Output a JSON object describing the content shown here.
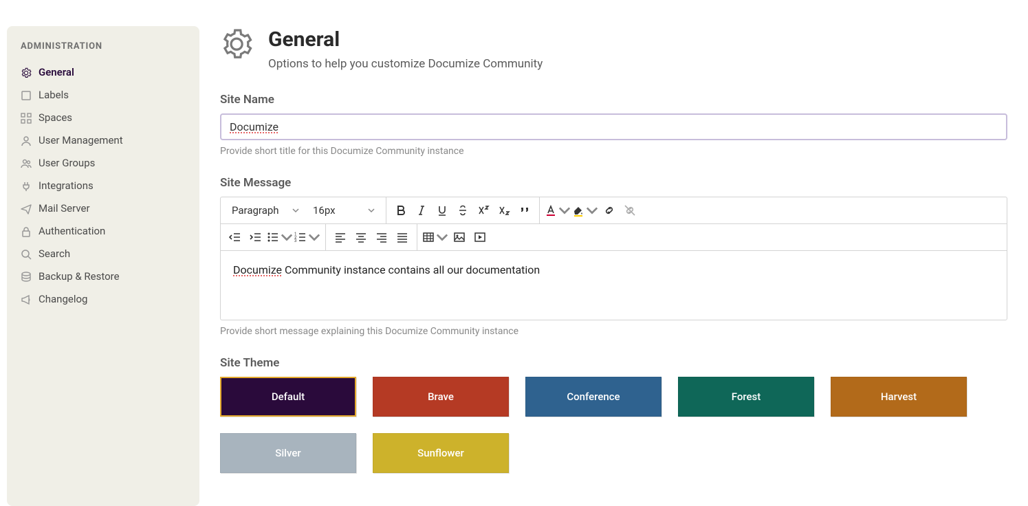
{
  "sidebar": {
    "title": "ADMINISTRATION",
    "items": [
      {
        "label": "General",
        "icon": "gear",
        "active": true
      },
      {
        "label": "Labels",
        "icon": "square",
        "active": false
      },
      {
        "label": "Spaces",
        "icon": "grid",
        "active": false
      },
      {
        "label": "User Management",
        "icon": "user",
        "active": false
      },
      {
        "label": "User Groups",
        "icon": "users",
        "active": false
      },
      {
        "label": "Integrations",
        "icon": "plug",
        "active": false
      },
      {
        "label": "Mail Server",
        "icon": "send",
        "active": false
      },
      {
        "label": "Authentication",
        "icon": "lock",
        "active": false
      },
      {
        "label": "Search",
        "icon": "search",
        "active": false
      },
      {
        "label": "Backup & Restore",
        "icon": "database",
        "active": false
      },
      {
        "label": "Changelog",
        "icon": "megaphone",
        "active": false
      }
    ]
  },
  "header": {
    "title": "General",
    "subtitle": "Options to help you customize Documize Community"
  },
  "site_name": {
    "label": "Site Name",
    "value": "Documize",
    "help": "Provide short title for this Documize Community instance"
  },
  "site_message": {
    "label": "Site Message",
    "help": "Provide short message explaining this Documize Community instance",
    "content_word": "Documize",
    "content_rest": " Community instance contains all our documentation",
    "toolbar": {
      "paragraph_select": "Paragraph",
      "fontsize_select": "16px"
    }
  },
  "site_theme": {
    "label": "Site Theme",
    "themes": [
      {
        "name": "Default",
        "color": "#2a0a3b",
        "selected": true
      },
      {
        "name": "Brave",
        "color": "#b53a24",
        "selected": false
      },
      {
        "name": "Conference",
        "color": "#2f628f",
        "selected": false
      },
      {
        "name": "Forest",
        "color": "#0f6758",
        "selected": false
      },
      {
        "name": "Harvest",
        "color": "#b26a1a",
        "selected": false
      },
      {
        "name": "Silver",
        "color": "#a8b4be",
        "selected": false
      },
      {
        "name": "Sunflower",
        "color": "#cdb22b",
        "selected": false
      }
    ]
  }
}
